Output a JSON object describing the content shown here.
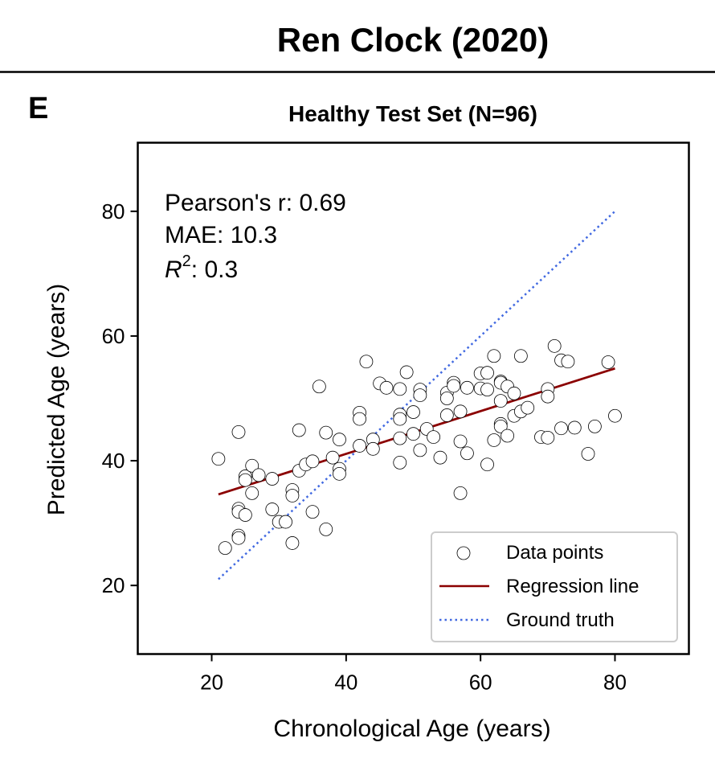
{
  "header": {
    "title": "Ren Clock (2020)",
    "panel_letter": "E"
  },
  "chart_data": {
    "type": "scatter",
    "title": "Healthy Test Set (N=96)",
    "xlabel": "Chronological Age (years)",
    "ylabel": "Predicted Age (years)",
    "xlim": [
      9,
      91
    ],
    "ylim": [
      9,
      91
    ],
    "xticks": [
      20,
      40,
      60,
      80
    ],
    "yticks": [
      20,
      40,
      60,
      80
    ],
    "grid": false,
    "legend_position": "bottom-right",
    "stats": {
      "pearson": "Pearson's r: 0.69",
      "mae": "MAE: 10.3",
      "r2_symbol": "R",
      "r2_exp": "2",
      "r2_value": ": 0.3"
    },
    "colors": {
      "points_edge": "#000000",
      "points_fill": "#ffffff",
      "regression": "#8b0000",
      "ground_truth": "#4169e1"
    },
    "series": [
      {
        "name": "Data points",
        "points": [
          [
            21,
            40.3
          ],
          [
            22,
            26
          ],
          [
            24,
            44.6
          ],
          [
            24,
            32.3
          ],
          [
            24,
            31.8
          ],
          [
            24,
            28
          ],
          [
            24,
            27.6
          ],
          [
            25,
            37.5
          ],
          [
            25,
            36.9
          ],
          [
            25,
            31.3
          ],
          [
            26,
            39.2
          ],
          [
            26,
            34.8
          ],
          [
            27,
            37.7
          ],
          [
            29,
            37.1
          ],
          [
            29,
            32.2
          ],
          [
            30,
            30.2
          ],
          [
            32,
            35.3
          ],
          [
            32,
            34.4
          ],
          [
            32,
            26.8
          ],
          [
            33,
            44.9
          ],
          [
            33,
            38.4
          ],
          [
            34,
            39.4
          ],
          [
            35,
            39.9
          ],
          [
            35,
            31.8
          ],
          [
            36,
            51.9
          ],
          [
            37,
            44.5
          ],
          [
            37,
            29
          ],
          [
            38,
            40.5
          ],
          [
            39,
            43.4
          ],
          [
            39,
            38.7
          ],
          [
            39,
            37.9
          ],
          [
            42,
            47.7
          ],
          [
            42,
            46.7
          ],
          [
            42,
            42.4
          ],
          [
            43,
            55.9
          ],
          [
            44,
            43.4
          ],
          [
            44,
            41.9
          ],
          [
            45,
            52.4
          ],
          [
            46,
            51.7
          ],
          [
            48,
            51.5
          ],
          [
            48,
            47.4
          ],
          [
            48,
            46.7
          ],
          [
            48,
            43.6
          ],
          [
            48,
            39.7
          ],
          [
            49,
            54.2
          ],
          [
            50,
            47.8
          ],
          [
            50,
            44.3
          ],
          [
            51,
            51.4
          ],
          [
            51,
            50.5
          ],
          [
            51,
            41.7
          ],
          [
            52,
            45.1
          ],
          [
            54,
            40.5
          ],
          [
            55,
            50.9
          ],
          [
            55,
            50
          ],
          [
            55,
            47.3
          ],
          [
            56,
            52.5
          ],
          [
            56,
            52
          ],
          [
            57,
            47.9
          ],
          [
            57,
            43.1
          ],
          [
            57,
            34.8
          ],
          [
            58,
            51.7
          ],
          [
            58,
            41.2
          ],
          [
            60,
            54
          ],
          [
            60,
            51.6
          ],
          [
            61,
            54.1
          ],
          [
            61,
            51.4
          ],
          [
            61,
            39.4
          ],
          [
            62,
            56.8
          ],
          [
            62,
            43.3
          ],
          [
            63,
            52.7
          ],
          [
            63,
            52.5
          ],
          [
            63,
            49.6
          ],
          [
            63,
            45.9
          ],
          [
            63,
            45.5
          ],
          [
            64,
            51.9
          ],
          [
            64,
            44
          ],
          [
            65,
            50.8
          ],
          [
            65,
            47.2
          ],
          [
            66,
            56.8
          ],
          [
            66,
            47.9
          ],
          [
            69,
            43.8
          ],
          [
            70,
            51.5
          ],
          [
            70,
            50.3
          ],
          [
            70,
            43.7
          ],
          [
            71,
            58.4
          ],
          [
            72,
            56.1
          ],
          [
            72,
            45.2
          ],
          [
            73,
            55.9
          ],
          [
            74,
            45.3
          ],
          [
            76,
            41.1
          ],
          [
            77,
            45.5
          ],
          [
            79,
            55.8
          ],
          [
            80,
            47.2
          ],
          [
            31,
            30.2
          ],
          [
            53,
            43.8
          ],
          [
            67,
            48.5
          ]
        ]
      },
      {
        "name": "Regression line",
        "x": [
          21,
          80
        ],
        "y": [
          34.6,
          54.8
        ]
      },
      {
        "name": "Ground truth",
        "x": [
          21,
          80
        ],
        "y": [
          21,
          80
        ]
      }
    ]
  }
}
